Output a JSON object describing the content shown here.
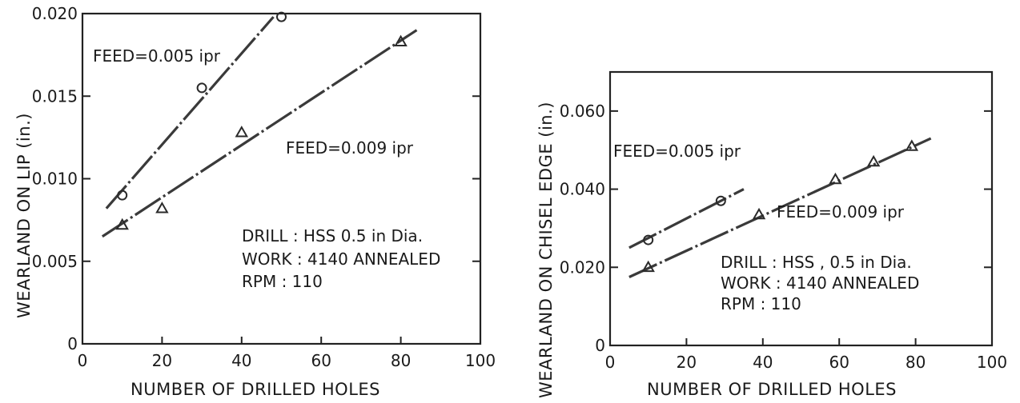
{
  "chart_data": [
    {
      "type": "scatter",
      "xlabel": "NUMBER OF DRILLED HOLES",
      "ylabel": "WEARLAND ON LIP (in.)",
      "xlim": [
        0,
        100
      ],
      "ylim": [
        0,
        0.02
      ],
      "x_ticks": [
        "0",
        "20",
        "40",
        "60",
        "80",
        "100"
      ],
      "y_ticks": [
        "0",
        "0.005",
        "0.010",
        "0.015",
        "0.020"
      ],
      "annotation": [
        "DRILL : HSS  0.5 in Dia.",
        "WORK : 4140 ANNEALED",
        "RPM : 110"
      ],
      "series": [
        {
          "name": "FEED=0.005 ipr",
          "marker": "circle",
          "points": [
            [
              10,
              0.009
            ],
            [
              30,
              0.0155
            ],
            [
              50,
              0.0198
            ]
          ],
          "fit": [
            [
              6,
              0.0082
            ],
            [
              48,
              0.0198
            ]
          ]
        },
        {
          "name": "FEED=0.009 ipr",
          "marker": "triangle",
          "points": [
            [
              10,
              0.0072
            ],
            [
              20,
              0.0082
            ],
            [
              40,
              0.0128
            ],
            [
              80,
              0.0183
            ]
          ],
          "fit": [
            [
              5,
              0.0065
            ],
            [
              84,
              0.019
            ]
          ]
        }
      ]
    },
    {
      "type": "scatter",
      "xlabel": "NUMBER OF DRILLED HOLES",
      "ylabel": "WEARLAND ON CHISEL EDGE (in.)",
      "xlim": [
        0,
        100
      ],
      "ylim": [
        0,
        0.07
      ],
      "x_ticks": [
        "0",
        "20",
        "40",
        "60",
        "80",
        "100"
      ],
      "y_ticks": [
        "0",
        "0.020",
        "0.040",
        "0.060"
      ],
      "annotation": [
        "DRILL : HSS , 0.5 in Dia.",
        "WORK : 4140 ANNEALED",
        "RPM : 110"
      ],
      "series": [
        {
          "name": "FEED=0.005 ipr",
          "marker": "circle",
          "points": [
            [
              10,
              0.027
            ],
            [
              29,
              0.037
            ]
          ],
          "fit": [
            [
              5,
              0.025
            ],
            [
              35,
              0.04
            ]
          ]
        },
        {
          "name": "FEED=0.009 ipr",
          "marker": "triangle",
          "points": [
            [
              10,
              0.02
            ],
            [
              39,
              0.0335
            ],
            [
              59,
              0.0425
            ],
            [
              69,
              0.047
            ],
            [
              79,
              0.051
            ]
          ],
          "fit": [
            [
              5,
              0.0175
            ],
            [
              84,
              0.053
            ]
          ]
        }
      ]
    }
  ]
}
